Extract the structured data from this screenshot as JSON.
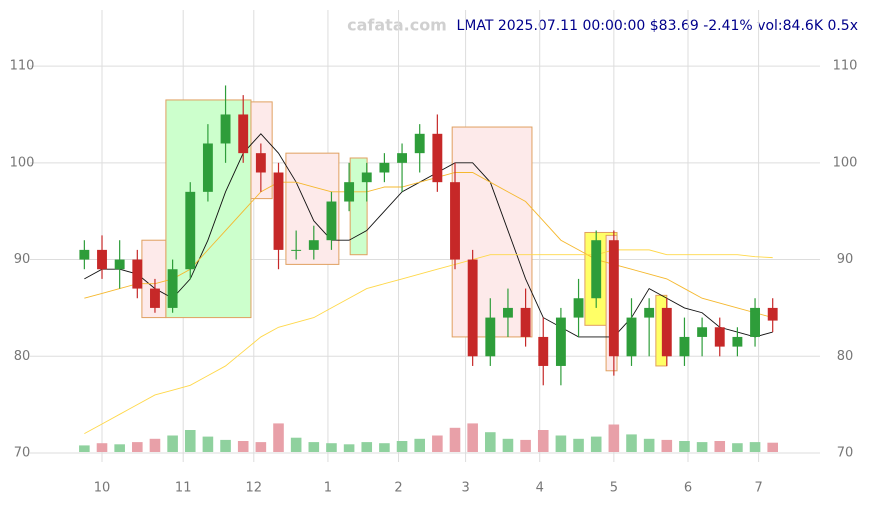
{
  "chart_data": {
    "type": "candlestick",
    "title": "LMAT 2025.07.11 00:00:00 $83.69 -2.41% vol:84.6K 0.5x",
    "watermark": "cafata.com",
    "x": [
      -5,
      0,
      5,
      10,
      15,
      20,
      25,
      30,
      35,
      40,
      45,
      50,
      55,
      60,
      65,
      70,
      75,
      80,
      85,
      90,
      95,
      100,
      105,
      110,
      115,
      120,
      125,
      130,
      135,
      140,
      145,
      150,
      155,
      160,
      165,
      170,
      175,
      180,
      185,
      190
    ],
    "open": [
      90,
      91,
      89,
      90,
      87,
      85,
      89,
      97,
      102,
      105,
      101,
      99,
      91,
      91,
      92,
      96,
      98,
      99,
      100,
      101,
      103,
      98,
      90,
      80,
      84,
      85,
      82,
      79,
      84,
      86,
      92,
      80,
      84,
      85,
      80,
      82,
      83,
      81,
      82,
      85
    ],
    "high": [
      92,
      92.5,
      92,
      91,
      88,
      90,
      98,
      104,
      108,
      107,
      102,
      100,
      93,
      93.5,
      97,
      100,
      100,
      101,
      102,
      104,
      105,
      100,
      91,
      86,
      87,
      87,
      84,
      85,
      88,
      93,
      93,
      86,
      86,
      86,
      84,
      84,
      84,
      83,
      86,
      86
    ],
    "low": [
      89,
      88,
      87,
      86,
      84.5,
      84.5,
      88,
      96,
      100,
      100,
      97,
      89,
      90,
      90,
      91,
      95,
      96,
      98,
      97,
      99,
      97,
      89,
      79,
      79,
      82,
      81,
      77,
      77,
      82,
      85,
      78,
      79,
      80,
      79,
      79,
      80,
      80,
      80,
      81,
      82.5
    ],
    "close": [
      91,
      89,
      90,
      87,
      85,
      89,
      97,
      102,
      105,
      101,
      99,
      91,
      91,
      92,
      96,
      98,
      99,
      100,
      101,
      103,
      98,
      90,
      80,
      84,
      85,
      82,
      79,
      84,
      86,
      92,
      80,
      84,
      85,
      80,
      82,
      83,
      81,
      82,
      85,
      83.69
    ],
    "volume": [
      60,
      80,
      70,
      90,
      120,
      150,
      200,
      140,
      110,
      100,
      90,
      260,
      130,
      90,
      80,
      70,
      90,
      80,
      100,
      120,
      150,
      220,
      260,
      180,
      120,
      110,
      200,
      150,
      120,
      140,
      250,
      160,
      120,
      110,
      100,
      90,
      100,
      80,
      90,
      84.6
    ],
    "volume_lim": [
      0,
      300
    ],
    "up_color": "#2e9d3a",
    "down_color": "#c62828",
    "volume_up_color": "#8fd19e",
    "volume_down_color": "#e8a0a8",
    "lines": [
      {
        "color": "#111111",
        "values": [
          88,
          89,
          89,
          88.5,
          87,
          86,
          88,
          92,
          97,
          101,
          103,
          101,
          98,
          94,
          92,
          92,
          93,
          95,
          97,
          98,
          99,
          100,
          100,
          98,
          93,
          88,
          84,
          83,
          82,
          82,
          82,
          84,
          87,
          86,
          85,
          84.5,
          83,
          82.5,
          82,
          82.5
        ]
      },
      {
        "color": "#f5b82e",
        "values": [
          86,
          86.5,
          87,
          87.5,
          87.5,
          88,
          89,
          91,
          93,
          95,
          97,
          98,
          98,
          97.5,
          97,
          97,
          97,
          97.5,
          97.5,
          98,
          98.5,
          99,
          99,
          98,
          97,
          96,
          94,
          92,
          91,
          90,
          89.5,
          89,
          88.5,
          88,
          87,
          86,
          85.5,
          85,
          84.5,
          84
        ]
      },
      {
        "color": "#ffd84a",
        "values": [
          72,
          73,
          74,
          75,
          76,
          76.5,
          77,
          78,
          79,
          80.5,
          82,
          83,
          83.5,
          84,
          85,
          86,
          87,
          87.5,
          88,
          88.5,
          89,
          89.5,
          90,
          90.5,
          90.5,
          90.5,
          90.5,
          90.5,
          90.5,
          90.5,
          91,
          91,
          91,
          90.5,
          90.5,
          90.5,
          90.5,
          90.5,
          90.3,
          90.2
        ]
      }
    ],
    "boxes": [
      {
        "x0": 11.3,
        "x1": 18.1,
        "y0": 84,
        "y1": 92,
        "color": "#fdeaea"
      },
      {
        "x0": 18.1,
        "x1": 42.2,
        "y0": 84,
        "y1": 106.5,
        "color": "#ccffcc"
      },
      {
        "x0": 42.2,
        "x1": 48.2,
        "y0": 96.3,
        "y1": 106.3,
        "color": "#fdeaea"
      },
      {
        "x0": 52.1,
        "x1": 67.1,
        "y0": 89.5,
        "y1": 101,
        "color": "#fdeaea"
      },
      {
        "x0": 70.3,
        "x1": 75.1,
        "y0": 90.5,
        "y1": 100.5,
        "color": "#ccffcc"
      },
      {
        "x0": 99.2,
        "x1": 121.8,
        "y0": 82,
        "y1": 103.7,
        "color": "#fdeaea"
      },
      {
        "x0": 136.8,
        "x1": 145.9,
        "y0": 83.2,
        "y1": 92.8,
        "color": "#ffff66"
      },
      {
        "x0": 142.8,
        "x1": 145.9,
        "y0": 78.5,
        "y1": 92.5,
        "color": "#fdeaea"
      },
      {
        "x0": 156.9,
        "x1": 160,
        "y0": 79,
        "y1": 86.3,
        "color": "#ffff66"
      }
    ],
    "xlim": [
      -20.4,
      203.4
    ],
    "xticks": [
      {
        "value": 0,
        "label": "10"
      },
      {
        "value": 23,
        "label": "11"
      },
      {
        "value": 43,
        "label": "12"
      },
      {
        "value": 64,
        "label": "1"
      },
      {
        "value": 84,
        "label": "2"
      },
      {
        "value": 103,
        "label": "3"
      },
      {
        "value": 124,
        "label": "4"
      },
      {
        "value": 145,
        "label": "5"
      },
      {
        "value": 166,
        "label": "6"
      },
      {
        "value": 186,
        "label": "7"
      }
    ],
    "ylim": [
      69.07,
      115.8
    ],
    "yticks": [
      70,
      80,
      90,
      100,
      110
    ],
    "grid": true
  }
}
